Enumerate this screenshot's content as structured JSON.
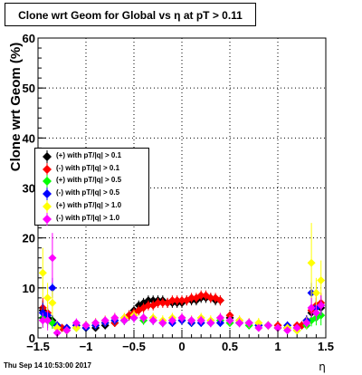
{
  "chart_data": {
    "type": "scatter",
    "title": "Clone wrt Geom for Global vs    η at pT > 0.11",
    "xlabel": "η",
    "ylabel": "Clone wrt Geom (%)",
    "xlim": [
      -1.5,
      1.5
    ],
    "ylim": [
      0,
      60
    ],
    "x_ticks": [
      "−1.5",
      "−1",
      "−0.5",
      "0",
      "0.5",
      "1",
      "1.5"
    ],
    "y_ticks": [
      "0",
      "10",
      "20",
      "30",
      "40",
      "50",
      "60"
    ],
    "grid": true,
    "legend_position": "left-middle",
    "timestamp": "Thu Sep 14 10:53:00 2017",
    "series": [
      {
        "name": "(+) with pT/|q| > 0.1",
        "color": "#000000",
        "x": [
          -1.45,
          -1.4,
          -1.35,
          -1.3,
          -1.25,
          -1.2,
          -1.1,
          -1.0,
          -0.9,
          -0.8,
          -0.7,
          -0.6,
          -0.55,
          -0.5,
          -0.45,
          -0.4,
          -0.35,
          -0.3,
          -0.25,
          -0.2,
          -0.15,
          -0.1,
          -0.05,
          0.0,
          0.05,
          0.1,
          0.15,
          0.2,
          0.25,
          0.3,
          0.35,
          0.4,
          0.5,
          0.6,
          0.7,
          0.8,
          0.9,
          1.0,
          1.1,
          1.2,
          1.25,
          1.3,
          1.35,
          1.4,
          1.45
        ],
        "y": [
          5.5,
          4.0,
          3.5,
          2.5,
          2.0,
          2.0,
          2.5,
          2.0,
          2.0,
          2.5,
          3.0,
          3.5,
          4.5,
          5.5,
          6.5,
          7.0,
          7.5,
          7.5,
          7.5,
          7.5,
          7.0,
          7.0,
          7.0,
          7.0,
          7.5,
          7.5,
          7.5,
          8.0,
          8.0,
          8.0,
          7.5,
          7.5,
          4.0,
          3.0,
          3.0,
          2.5,
          2.5,
          2.0,
          2.0,
          2.0,
          2.5,
          3.0,
          5.0,
          6.0,
          6.0
        ],
        "err": [
          2.0,
          1.5,
          1.0,
          0.8,
          0.7,
          0.7,
          0.8,
          0.7,
          0.7,
          0.8,
          0.8,
          0.9,
          1.0,
          1.0,
          1.0,
          1.0,
          1.0,
          1.0,
          1.0,
          1.0,
          1.0,
          1.0,
          1.0,
          1.0,
          1.0,
          1.0,
          1.0,
          1.0,
          1.0,
          1.0,
          1.0,
          1.0,
          0.9,
          0.8,
          0.8,
          0.7,
          0.7,
          0.7,
          0.7,
          0.7,
          0.8,
          1.0,
          1.5,
          2.0,
          2.0
        ]
      },
      {
        "name": "(-) with pT/|q| > 0.1",
        "color": "#ff0000",
        "x": [
          -1.45,
          -1.4,
          -1.35,
          -1.3,
          -1.25,
          -1.2,
          -1.1,
          -1.0,
          -0.9,
          -0.8,
          -0.7,
          -0.6,
          -0.55,
          -0.5,
          -0.45,
          -0.4,
          -0.35,
          -0.3,
          -0.25,
          -0.2,
          -0.15,
          -0.1,
          -0.05,
          0.0,
          0.05,
          0.1,
          0.15,
          0.2,
          0.25,
          0.3,
          0.35,
          0.4,
          0.5,
          0.6,
          0.7,
          0.8,
          0.9,
          1.0,
          1.1,
          1.2,
          1.25,
          1.3,
          1.35,
          1.4,
          1.45
        ],
        "y": [
          6.0,
          5.0,
          3.0,
          2.5,
          2.0,
          2.0,
          2.5,
          2.5,
          2.5,
          3.0,
          3.0,
          4.0,
          4.5,
          5.0,
          5.5,
          6.0,
          6.5,
          6.5,
          7.0,
          7.0,
          7.0,
          7.5,
          7.5,
          7.5,
          7.5,
          8.0,
          8.0,
          8.5,
          8.5,
          8.0,
          8.0,
          7.5,
          4.5,
          3.5,
          3.0,
          2.5,
          2.5,
          2.5,
          2.0,
          2.5,
          2.5,
          3.5,
          5.5,
          6.5,
          7.0
        ],
        "err": [
          2.0,
          1.5,
          1.0,
          0.8,
          0.7,
          0.7,
          0.8,
          0.8,
          0.8,
          0.8,
          0.8,
          0.9,
          1.0,
          1.0,
          1.0,
          1.0,
          1.0,
          1.0,
          1.0,
          1.0,
          1.0,
          1.0,
          1.0,
          1.0,
          1.0,
          1.0,
          1.0,
          1.0,
          1.0,
          1.0,
          1.0,
          1.0,
          0.9,
          0.8,
          0.8,
          0.7,
          0.7,
          0.7,
          0.7,
          0.7,
          0.8,
          1.0,
          1.5,
          2.0,
          2.0
        ]
      },
      {
        "name": "(+) with pT/|q| > 0.5",
        "color": "#00ff00",
        "x": [
          -1.45,
          -1.4,
          -1.35,
          -1.3,
          -1.2,
          -1.1,
          -1.0,
          -0.9,
          -0.8,
          -0.7,
          -0.6,
          -0.5,
          -0.4,
          -0.3,
          -0.2,
          -0.1,
          0.0,
          0.1,
          0.2,
          0.3,
          0.4,
          0.5,
          0.6,
          0.7,
          0.8,
          0.9,
          1.0,
          1.1,
          1.2,
          1.3,
          1.35,
          1.4,
          1.45
        ],
        "y": [
          4.0,
          3.5,
          3.0,
          2.0,
          1.5,
          2.0,
          2.0,
          2.5,
          3.0,
          3.5,
          3.5,
          4.0,
          3.5,
          3.5,
          3.0,
          3.5,
          3.5,
          3.0,
          3.5,
          3.0,
          3.5,
          3.0,
          3.0,
          2.5,
          2.5,
          2.5,
          2.0,
          2.0,
          1.5,
          2.5,
          3.5,
          4.0,
          4.5
        ],
        "err": [
          2.0,
          1.5,
          1.2,
          0.8,
          0.7,
          0.7,
          0.7,
          0.8,
          0.8,
          0.9,
          0.9,
          0.9,
          0.9,
          0.9,
          0.8,
          0.9,
          0.9,
          0.8,
          0.9,
          0.8,
          0.9,
          0.8,
          0.8,
          0.8,
          0.8,
          0.8,
          0.7,
          0.7,
          0.7,
          0.8,
          1.2,
          1.5,
          2.0
        ]
      },
      {
        "name": "(-) with pT/|q| > 0.5",
        "color": "#0000ff",
        "x": [
          -1.45,
          -1.4,
          -1.35,
          -1.3,
          -1.2,
          -1.1,
          -1.0,
          -0.9,
          -0.8,
          -0.7,
          -0.6,
          -0.5,
          -0.4,
          -0.3,
          -0.2,
          -0.1,
          0.0,
          0.1,
          0.2,
          0.3,
          0.4,
          0.5,
          0.6,
          0.7,
          0.8,
          0.9,
          1.0,
          1.1,
          1.2,
          1.3,
          1.35,
          1.4,
          1.45
        ],
        "y": [
          5.0,
          4.5,
          10.0,
          2.5,
          2.0,
          2.5,
          2.0,
          2.5,
          3.0,
          3.5,
          3.5,
          4.0,
          4.0,
          3.5,
          3.0,
          3.0,
          3.5,
          3.0,
          3.0,
          3.0,
          3.0,
          3.5,
          3.0,
          3.0,
          2.5,
          2.5,
          2.0,
          2.5,
          2.0,
          3.5,
          9.0,
          6.0,
          6.5
        ],
        "err": [
          2.0,
          1.5,
          2.0,
          0.8,
          0.7,
          0.8,
          0.7,
          0.8,
          0.8,
          0.9,
          0.9,
          0.9,
          0.9,
          0.9,
          0.8,
          0.8,
          0.9,
          0.8,
          0.8,
          0.8,
          0.8,
          0.9,
          0.8,
          0.8,
          0.8,
          0.8,
          0.7,
          0.8,
          0.7,
          1.0,
          2.0,
          1.5,
          2.0
        ]
      },
      {
        "name": "(+) with pT/|q| > 1.0",
        "color": "#ffff00",
        "x": [
          -1.45,
          -1.4,
          -1.35,
          -1.3,
          -1.2,
          -1.1,
          -1.0,
          -0.9,
          -0.8,
          -0.7,
          -0.6,
          -0.5,
          -0.4,
          -0.3,
          -0.2,
          -0.1,
          0.0,
          0.1,
          0.2,
          0.3,
          0.4,
          0.5,
          0.6,
          0.7,
          0.8,
          0.9,
          1.0,
          1.1,
          1.2,
          1.3,
          1.35,
          1.4,
          1.45
        ],
        "y": [
          13.0,
          8.0,
          7.0,
          2.0,
          1.5,
          2.0,
          2.5,
          3.0,
          3.5,
          4.0,
          4.0,
          4.5,
          4.0,
          4.0,
          3.5,
          4.0,
          4.0,
          3.5,
          4.0,
          3.5,
          4.0,
          3.5,
          3.5,
          3.0,
          3.0,
          2.5,
          2.0,
          2.0,
          1.5,
          3.0,
          15.0,
          9.0,
          11.5
        ],
        "err": [
          5.0,
          3.0,
          2.5,
          1.0,
          0.8,
          0.8,
          0.9,
          1.0,
          1.0,
          1.0,
          1.0,
          1.0,
          1.0,
          1.0,
          1.0,
          1.0,
          1.0,
          1.0,
          1.0,
          1.0,
          1.0,
          1.0,
          1.0,
          1.0,
          1.0,
          0.9,
          0.8,
          0.8,
          0.8,
          1.2,
          8.0,
          3.0,
          4.0
        ]
      },
      {
        "name": "(-) with pT/|q| > 1.0",
        "color": "#ff00ff",
        "x": [
          -1.45,
          -1.4,
          -1.35,
          -1.3,
          -1.2,
          -1.1,
          -1.0,
          -0.9,
          -0.8,
          -0.7,
          -0.6,
          -0.5,
          -0.4,
          -0.3,
          -0.2,
          -0.1,
          0.0,
          0.1,
          0.2,
          0.3,
          0.4,
          0.5,
          0.6,
          0.7,
          0.8,
          0.9,
          1.0,
          1.1,
          1.2,
          1.3,
          1.35,
          1.4,
          1.45
        ],
        "y": [
          3.5,
          3.5,
          16.0,
          1.0,
          1.5,
          3.0,
          2.5,
          3.0,
          3.5,
          4.0,
          3.5,
          4.0,
          4.0,
          3.5,
          3.0,
          3.5,
          4.0,
          3.5,
          3.5,
          3.0,
          4.0,
          3.5,
          3.0,
          3.0,
          2.0,
          2.5,
          2.0,
          1.5,
          2.0,
          3.0,
          6.0,
          5.0,
          6.5
        ],
        "err": [
          1.5,
          2.0,
          5.0,
          0.7,
          0.7,
          0.9,
          0.8,
          0.9,
          0.9,
          1.0,
          0.9,
          1.0,
          1.0,
          0.9,
          0.9,
          0.9,
          1.0,
          0.9,
          0.9,
          0.9,
          1.0,
          0.9,
          0.9,
          0.9,
          0.7,
          0.8,
          0.7,
          0.7,
          0.7,
          0.9,
          2.0,
          1.5,
          2.0
        ]
      }
    ]
  }
}
